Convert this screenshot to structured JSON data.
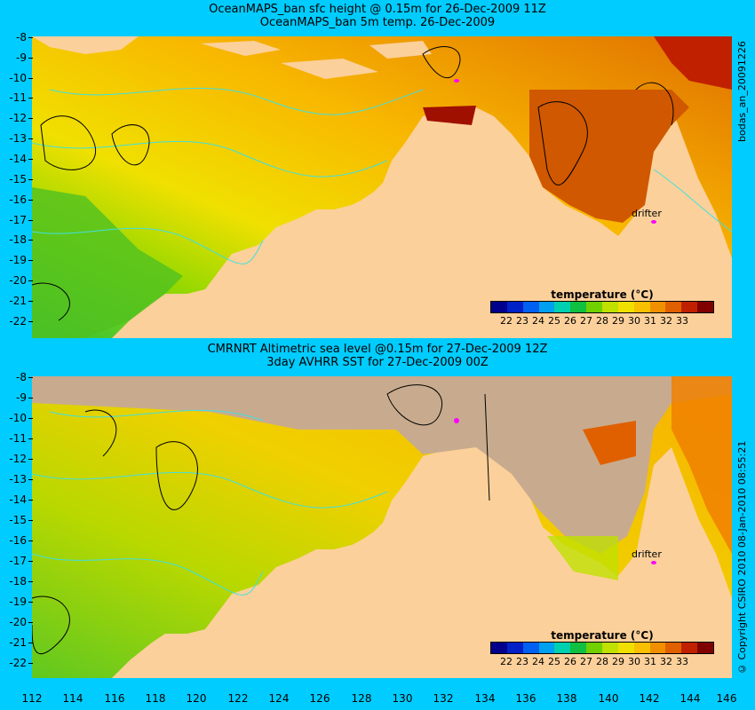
{
  "top_panel": {
    "title_line1": "OceanMAPS_ban sfc height @ 0.15m for 26-Dec-2009 11Z",
    "title_line2": "OceanMAPS_ban 5m temp. 26-Dec-2009",
    "side_label": "bodas_an_20091226",
    "drifter_label": "drifter"
  },
  "bottom_panel": {
    "title_line1": "CMRNRT Altimetric sea level  @0.15m  for 27-Dec-2009 12Z",
    "title_line2": "3day AVHRR SST for 27-Dec-2009 00Z",
    "side_label": "© Copyright CSIRO 2010   08-Jan-2010 08:55:21",
    "drifter_label": "drifter"
  },
  "legend": {
    "title": "temperature (°C)",
    "ticks": [
      "22",
      "23",
      "24",
      "25",
      "26",
      "27",
      "28",
      "29",
      "30",
      "31",
      "32",
      "33"
    ],
    "colors": [
      "#00008c",
      "#0020c8",
      "#0060f0",
      "#00a0f0",
      "#00d0b0",
      "#10c040",
      "#70d000",
      "#c0e000",
      "#f0e000",
      "#f8c000",
      "#f09000",
      "#e06000",
      "#c02000",
      "#800000"
    ]
  },
  "axes": {
    "y_ticks": [
      "-8",
      "-9",
      "-10",
      "-11",
      "-12",
      "-13",
      "-14",
      "-15",
      "-16",
      "-17",
      "-18",
      "-19",
      "-20",
      "-21",
      "-22"
    ],
    "x_ticks": [
      "112",
      "114",
      "116",
      "118",
      "120",
      "122",
      "124",
      "126",
      "128",
      "130",
      "132",
      "134",
      "136",
      "138",
      "140",
      "142",
      "144",
      "146"
    ]
  },
  "colors": {
    "background": "#00ccff",
    "land": "#fcd09a",
    "no_data": "#c8ab8e",
    "contour": "#40e0e0"
  }
}
